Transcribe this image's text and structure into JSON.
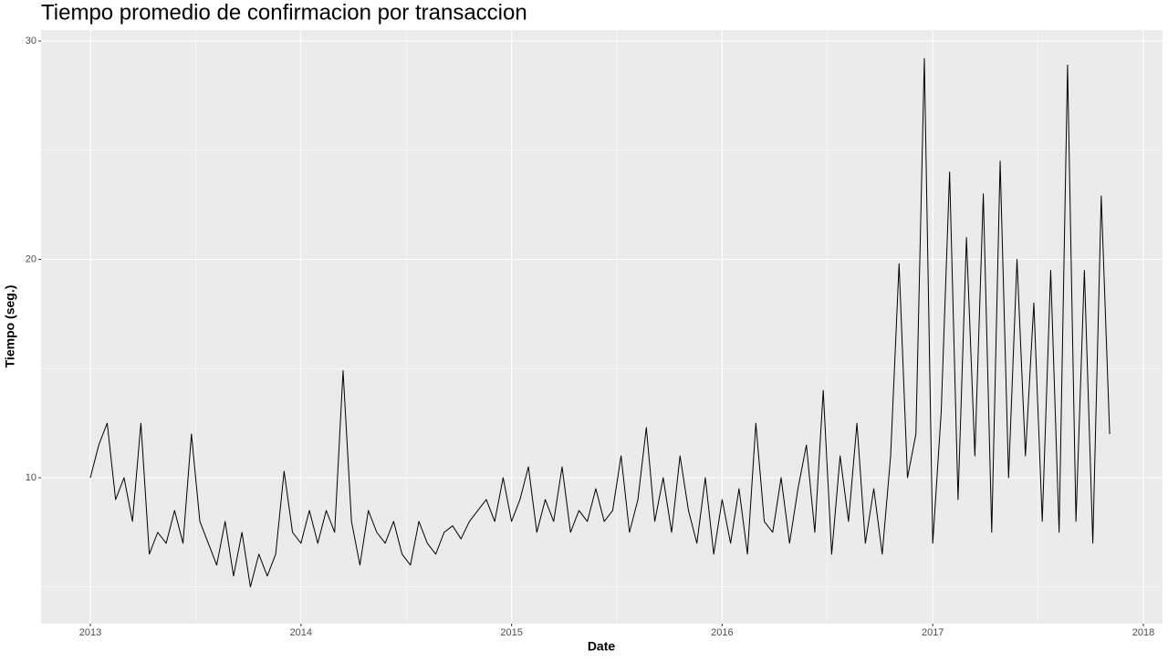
{
  "chart_data": {
    "type": "line",
    "title": "Tiempo promedio de confirmacion por transaccion",
    "x_label": "Date",
    "y_label": "Tiempo (seg.)",
    "color": "#000000",
    "grid": true,
    "xlim": [
      2012.766,
      2018.091
    ],
    "ylim": [
      3.32,
      30.5
    ],
    "xticks": [
      2013,
      2014,
      2015,
      2016,
      2017,
      2018
    ],
    "yticks": [
      10,
      20,
      30
    ],
    "x_minor_grid": [
      2013.5,
      2014.5,
      2015.5,
      2016.5,
      2017.5
    ],
    "y_minor_grid": [
      5,
      15,
      25
    ],
    "x": [
      2013.0,
      2013.04,
      2013.08,
      2013.12,
      2013.16,
      2013.2,
      2013.24,
      2013.28,
      2013.32,
      2013.36,
      2013.4,
      2013.44,
      2013.48,
      2013.52,
      2013.56,
      2013.6,
      2013.64,
      2013.68,
      2013.72,
      2013.76,
      2013.8,
      2013.84,
      2013.88,
      2013.92,
      2013.96,
      2014.0,
      2014.04,
      2014.08,
      2014.12,
      2014.16,
      2014.2,
      2014.24,
      2014.28,
      2014.32,
      2014.36,
      2014.4,
      2014.44,
      2014.48,
      2014.52,
      2014.56,
      2014.6,
      2014.64,
      2014.68,
      2014.72,
      2014.76,
      2014.8,
      2014.84,
      2014.88,
      2014.92,
      2014.96,
      2015.0,
      2015.04,
      2015.08,
      2015.12,
      2015.16,
      2015.2,
      2015.24,
      2015.28,
      2015.32,
      2015.36,
      2015.4,
      2015.44,
      2015.48,
      2015.52,
      2015.56,
      2015.6,
      2015.64,
      2015.68,
      2015.72,
      2015.76,
      2015.8,
      2015.84,
      2015.88,
      2015.92,
      2015.96,
      2016.0,
      2016.04,
      2016.08,
      2016.12,
      2016.16,
      2016.2,
      2016.24,
      2016.28,
      2016.32,
      2016.36,
      2016.4,
      2016.44,
      2016.48,
      2016.52,
      2016.56,
      2016.6,
      2016.64,
      2016.68,
      2016.72,
      2016.76,
      2016.8,
      2016.84,
      2016.88,
      2016.92,
      2016.96,
      2017.0,
      2017.04,
      2017.08,
      2017.12,
      2017.16,
      2017.2,
      2017.24,
      2017.28,
      2017.32,
      2017.36,
      2017.4,
      2017.44,
      2017.48,
      2017.52,
      2017.56,
      2017.6,
      2017.64,
      2017.68,
      2017.72,
      2017.76,
      2017.8,
      2017.84
    ],
    "values": [
      10,
      11.5,
      12.5,
      9,
      10,
      8,
      12.5,
      6.5,
      7.5,
      7,
      8.5,
      7,
      12,
      8,
      7,
      6,
      8,
      5.5,
      7.5,
      5,
      6.5,
      5.5,
      6.5,
      10.3,
      7.5,
      7,
      8.5,
      7,
      8.5,
      7.5,
      14.9,
      8,
      6,
      8.5,
      7.5,
      7,
      8,
      6.5,
      6,
      8,
      7,
      6.5,
      7.5,
      7.8,
      7.2,
      8,
      8.5,
      9,
      8,
      10,
      8,
      9,
      10.5,
      7.5,
      9,
      8,
      10.5,
      7.5,
      8.5,
      8,
      9.5,
      8,
      8.5,
      11,
      7.5,
      9,
      12.3,
      8,
      10,
      7.5,
      11,
      8.5,
      7,
      10,
      6.5,
      9,
      7,
      9.5,
      6.5,
      12.5,
      8,
      7.5,
      10,
      7,
      9.5,
      11.5,
      7.5,
      14,
      6.5,
      11,
      8,
      12.5,
      7,
      9.5,
      6.5,
      11,
      19.8,
      10,
      12,
      29.2,
      7,
      13,
      24,
      9,
      21,
      11,
      23,
      7.5,
      24.5,
      10,
      20,
      11,
      18,
      8,
      19.5,
      7.5,
      28.9,
      8,
      19.5,
      7,
      22.9,
      12
    ]
  }
}
